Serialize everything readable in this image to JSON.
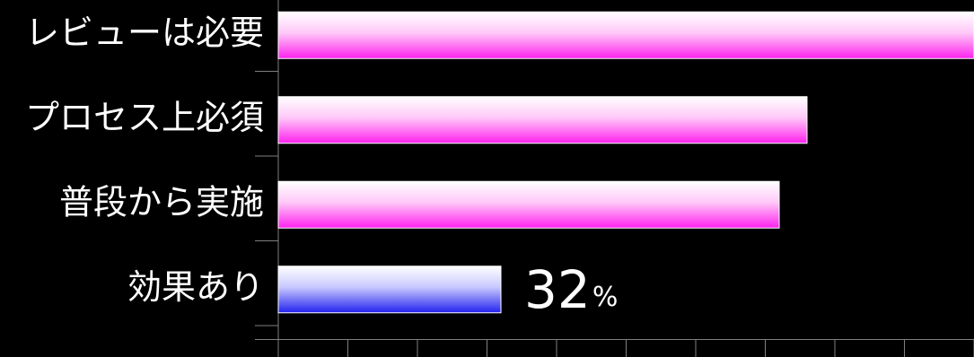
{
  "chart_data": {
    "type": "bar",
    "orientation": "horizontal",
    "categories": [
      "レビューは必要",
      "プロセス上必須",
      "普段から実施",
      "効果あり"
    ],
    "values": [
      100,
      76,
      72,
      32
    ],
    "xlim": [
      0,
      100
    ],
    "data_labels": [
      {
        "category": "効果あり",
        "number": "32",
        "unit": "%"
      }
    ],
    "colors": {
      "background": "#000000",
      "bar_pink": "#ff22ee",
      "bar_blue": "#2222ee",
      "bar_top": "#ffffff",
      "axis": "#808080",
      "text": "#ffffff"
    },
    "bar_colors": [
      "bar_pink",
      "bar_pink",
      "bar_pink",
      "bar_blue"
    ],
    "grid": false,
    "legend": "none"
  }
}
